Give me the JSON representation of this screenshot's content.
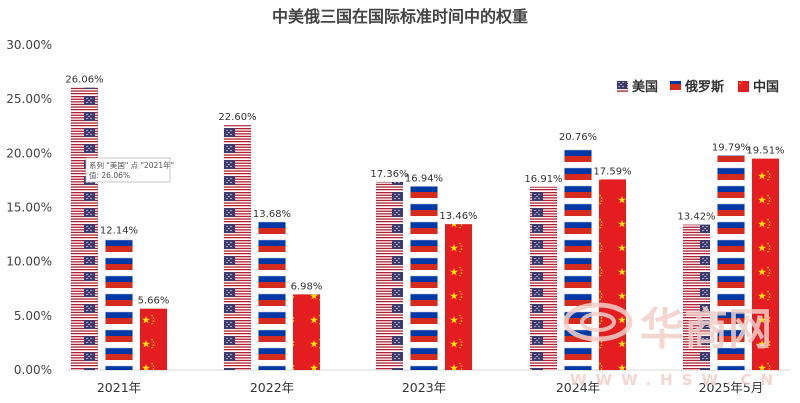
{
  "chart_data": {
    "type": "bar",
    "title": "中美俄三国在国际标准时间中的权重",
    "categories": [
      "2021年",
      "2022年",
      "2023年",
      "2024年",
      "2025年5月"
    ],
    "series": [
      {
        "name": "美国",
        "values": [
          26.06,
          22.6,
          17.36,
          16.91,
          13.42
        ],
        "labels": [
          "26.06%",
          "22.60%",
          "17.36%",
          "16.91%",
          "13.42%"
        ],
        "pattern": "usa-flag"
      },
      {
        "name": "俄罗斯",
        "values": [
          12.14,
          13.68,
          16.94,
          20.76,
          19.79
        ],
        "labels": [
          "12.14%",
          "13.68%",
          "16.94%",
          "20.76%",
          "19.79%"
        ],
        "pattern": "russia-flag"
      },
      {
        "name": "中国",
        "values": [
          5.66,
          6.98,
          13.46,
          17.59,
          19.51
        ],
        "labels": [
          "5.66%",
          "6.98%",
          "13.46%",
          "17.59%",
          "19.51%"
        ],
        "pattern": "china-flag"
      }
    ],
    "y_ticks": [
      "0.00%",
      "5.00%",
      "10.00%",
      "15.00%",
      "20.00%",
      "25.00%",
      "30.00%"
    ],
    "ylim": [
      0,
      30
    ],
    "gridlines": false,
    "legend_position": "top-right"
  },
  "tooltip": {
    "line1": "系列 \"美国\" 点 \"2021年\"",
    "line2": "值: 26.06%"
  },
  "watermark": {
    "logo_text": "华商网",
    "url_text": "WWW.HSW.CN"
  },
  "colors": {
    "usa_blue": "#3c3b6e",
    "usa_red": "#b22234",
    "russia_blue": "#0039a6",
    "russia_red": "#d52b1e",
    "china_red": "#e41e20",
    "china_star": "#ffde00",
    "axis": "#d9d9d9",
    "text": "#444444"
  }
}
